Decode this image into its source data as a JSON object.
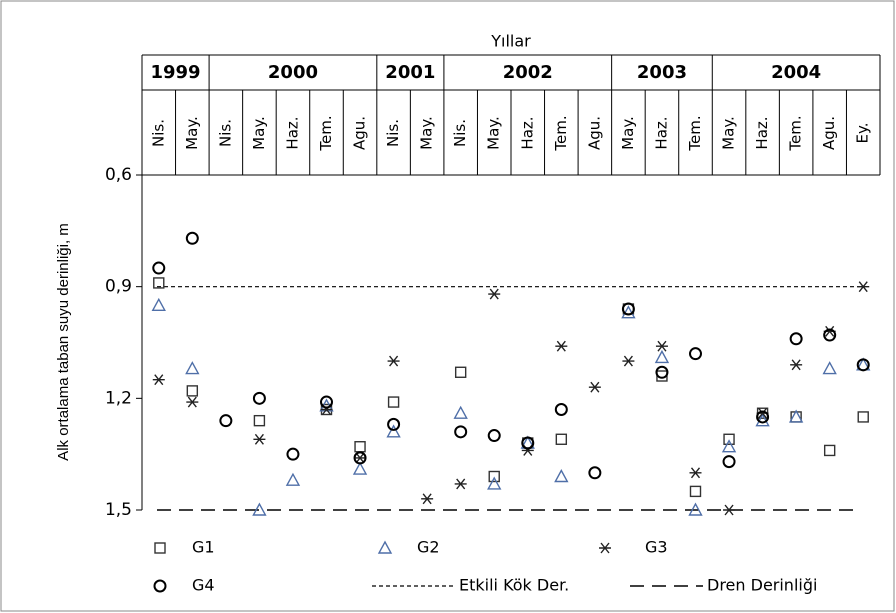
{
  "chart_data": {
    "type": "scatter",
    "header": "Yıllar",
    "y_label": "Alk ortalama taban suyu derinliği, m",
    "year_groups": [
      {
        "label": "1999",
        "months": [
          "Nis.",
          "May."
        ]
      },
      {
        "label": "2000",
        "months": [
          "Nis.",
          "May.",
          "Haz.",
          "Tem.",
          "Agu."
        ]
      },
      {
        "label": "2001",
        "months": [
          "Nis.",
          "May."
        ]
      },
      {
        "label": "2002",
        "months": [
          "Nis.",
          "May.",
          "Haz.",
          "Tem.",
          "Agu."
        ]
      },
      {
        "label": "2003",
        "months": [
          "May.",
          "Haz.",
          "Tem."
        ]
      },
      {
        "label": "2004",
        "months": [
          "May.",
          "Haz.",
          "Tem.",
          "Agu.",
          "Ey."
        ]
      }
    ],
    "ylim": [
      0.6,
      1.5
    ],
    "y_inverted": true,
    "yticks": [
      {
        "value": 0.6,
        "label": "0,6"
      },
      {
        "value": 0.9,
        "label": "0,9"
      },
      {
        "value": 1.2,
        "label": "1,2"
      },
      {
        "value": 1.5,
        "label": "1,5"
      }
    ],
    "series": [
      {
        "name": "G1",
        "marker": "square",
        "color": "#333333",
        "values": [
          0.89,
          1.18,
          null,
          1.26,
          null,
          1.23,
          1.33,
          1.21,
          null,
          1.13,
          1.41,
          1.32,
          1.31,
          null,
          0.96,
          1.14,
          1.45,
          1.31,
          1.24,
          1.25,
          1.34,
          1.25
        ]
      },
      {
        "name": "G2",
        "marker": "triangle",
        "color": "#4f6fa8",
        "values": [
          0.95,
          1.12,
          null,
          1.5,
          1.42,
          1.22,
          1.39,
          1.29,
          null,
          1.24,
          1.43,
          1.32,
          1.41,
          null,
          0.97,
          1.09,
          1.5,
          1.33,
          1.26,
          1.25,
          1.12,
          1.11
        ]
      },
      {
        "name": "G3",
        "marker": "star",
        "color": "#222222",
        "values": [
          1.15,
          1.21,
          null,
          1.31,
          null,
          1.23,
          1.36,
          1.1,
          1.47,
          1.43,
          0.92,
          1.34,
          1.06,
          1.17,
          1.1,
          1.06,
          1.4,
          1.5,
          1.24,
          1.11,
          1.02,
          0.9
        ]
      },
      {
        "name": "G4",
        "marker": "circle",
        "color": "#000000",
        "values": [
          0.85,
          0.77,
          1.26,
          1.2,
          1.35,
          1.21,
          1.36,
          1.27,
          null,
          1.29,
          1.3,
          1.32,
          1.23,
          1.4,
          0.96,
          1.13,
          1.08,
          1.37,
          1.25,
          1.04,
          1.03,
          1.11
        ]
      }
    ],
    "reference_lines": [
      {
        "name": "Etkili Kök Der.",
        "value": 0.9,
        "style": "dotted"
      },
      {
        "name": "Dren Derinliği",
        "value": 1.5,
        "style": "dashed"
      }
    ]
  }
}
